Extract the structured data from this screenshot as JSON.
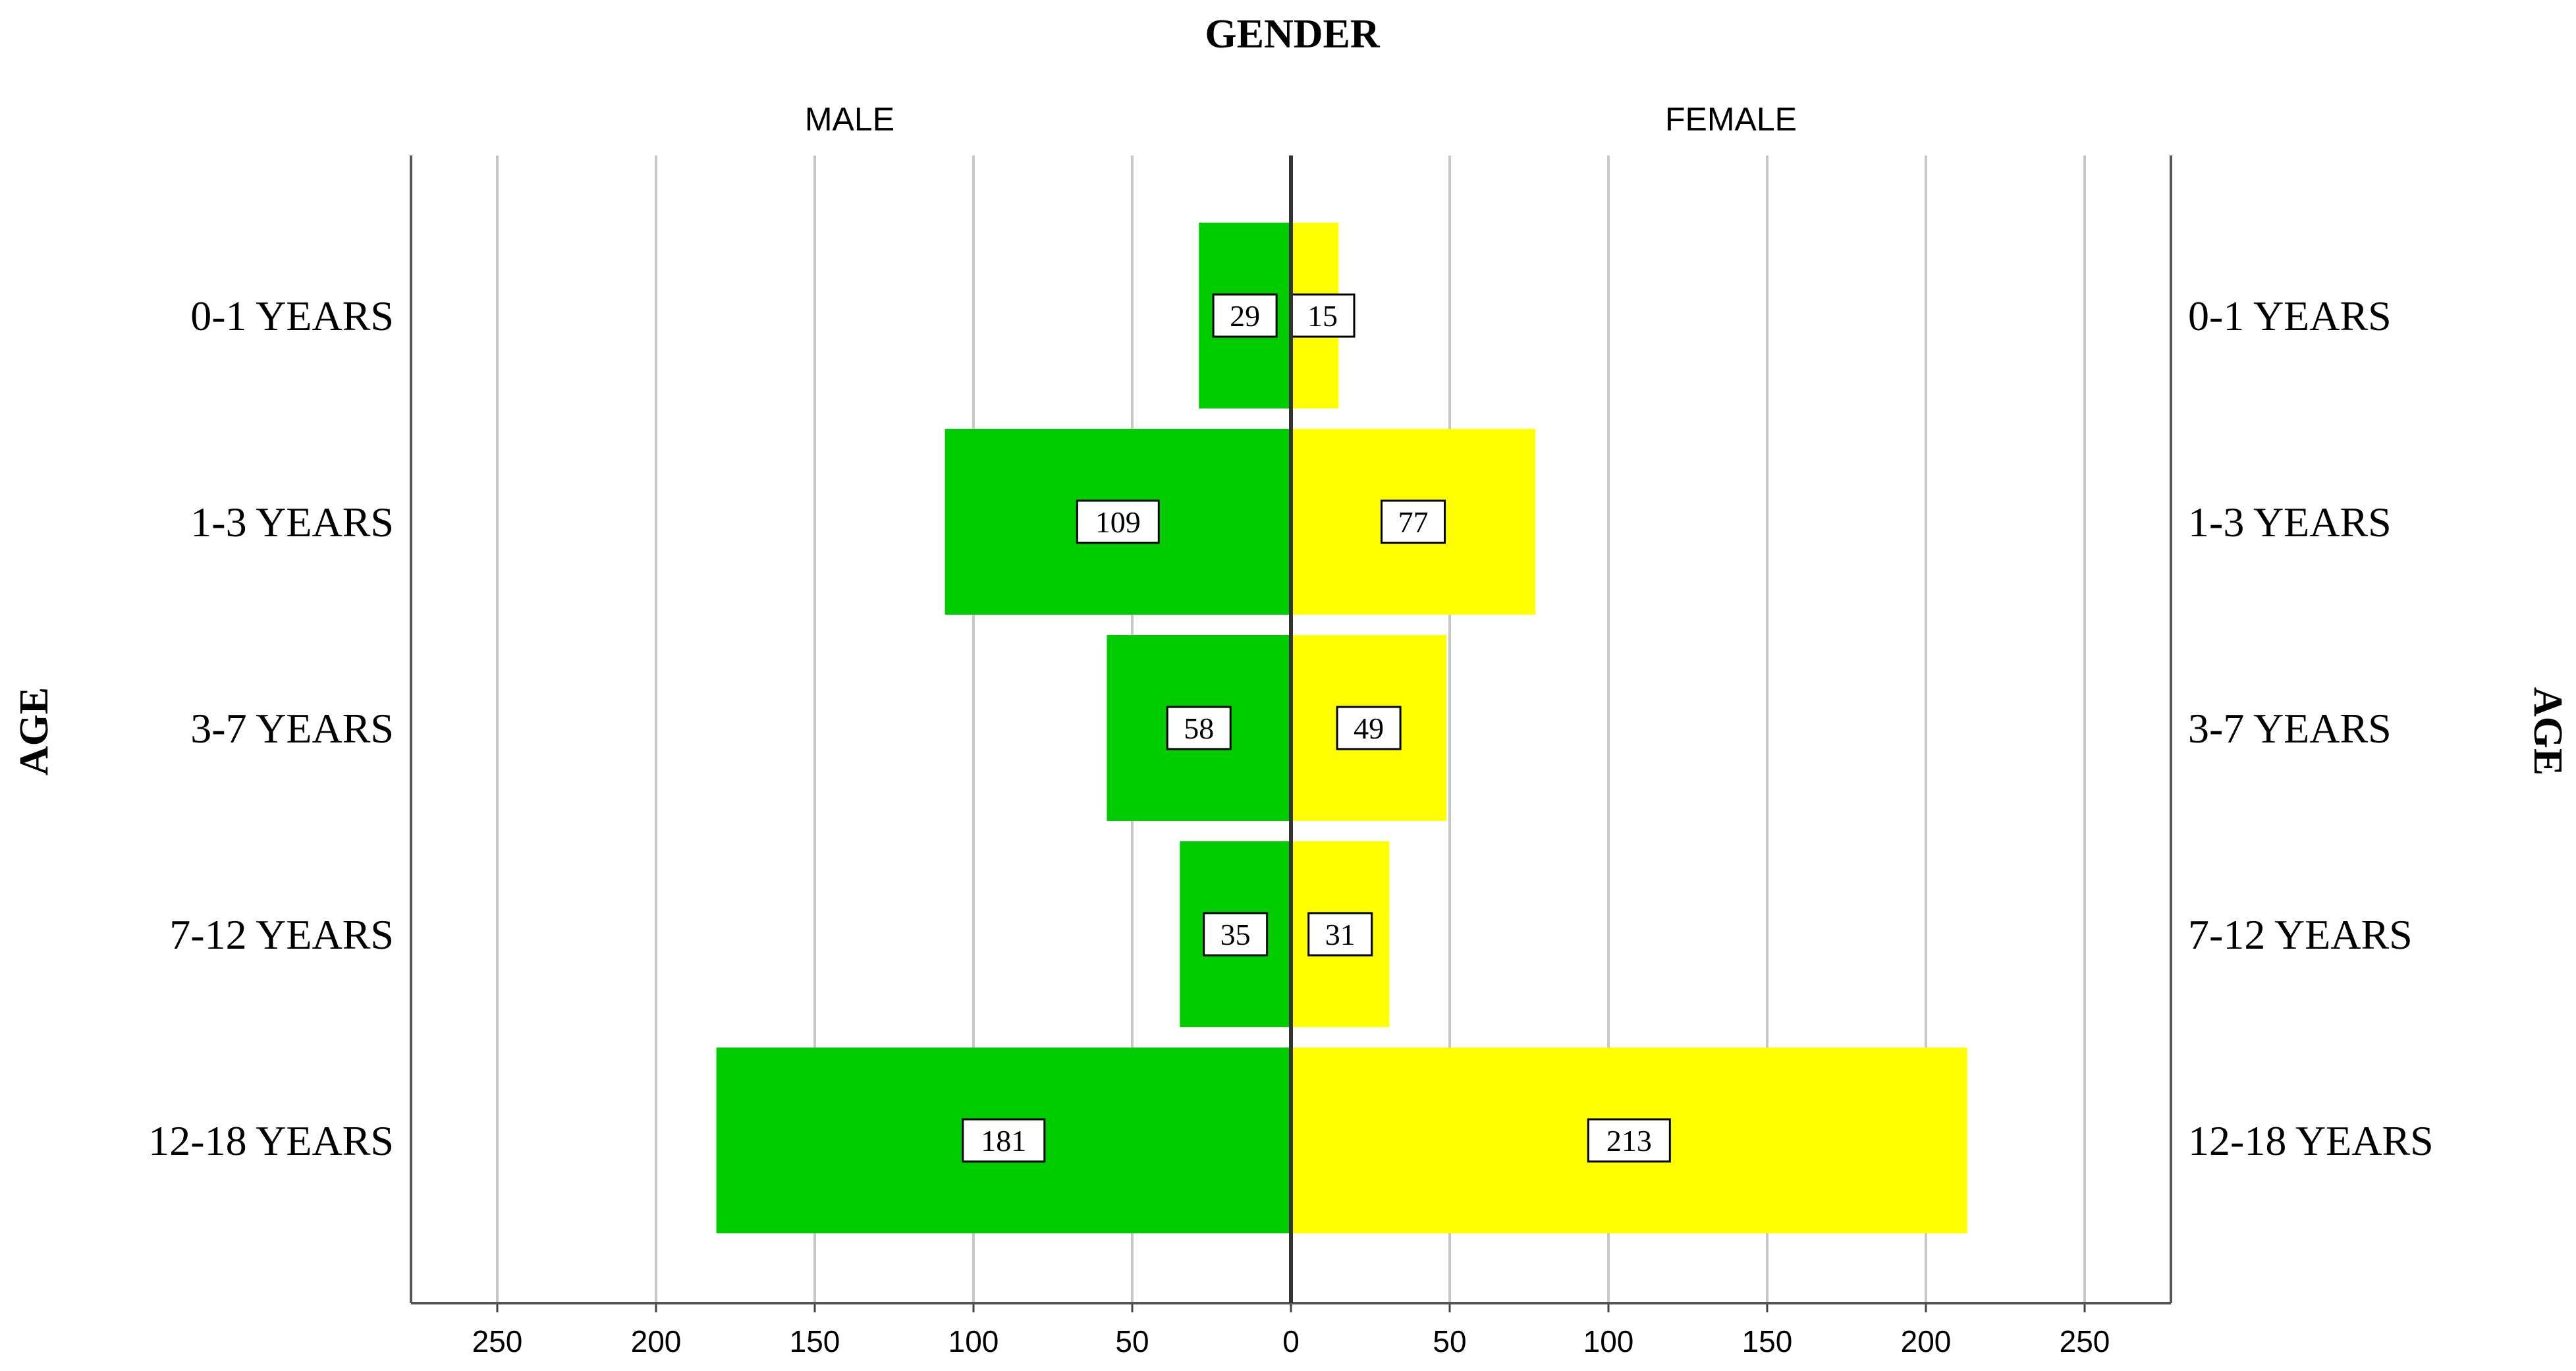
{
  "chart_data": {
    "type": "bar",
    "title": "GENDER",
    "ylabel": "AGE",
    "categories": [
      "0-1 YEARS",
      "1-3 YEARS",
      "3-7 YEARS",
      "7-12 YEARS",
      "12-18 YEARS"
    ],
    "series": [
      {
        "name": "MALE",
        "values": [
          29,
          109,
          58,
          35,
          181
        ],
        "color": "#00cc00"
      },
      {
        "name": "FEMALE",
        "values": [
          15,
          77,
          49,
          31,
          213
        ],
        "color": "#ffff00"
      }
    ],
    "xticks": [
      "250",
      "200",
      "150",
      "100",
      "50",
      "0",
      "50",
      "100",
      "150",
      "200",
      "250"
    ],
    "xlim": [
      -280,
      280
    ],
    "grid": true,
    "orientation": "population-pyramid"
  }
}
